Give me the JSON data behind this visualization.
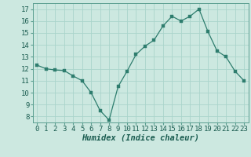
{
  "x": [
    0,
    1,
    2,
    3,
    4,
    5,
    6,
    7,
    8,
    9,
    10,
    11,
    12,
    13,
    14,
    15,
    16,
    17,
    18,
    19,
    20,
    21,
    22,
    23
  ],
  "y": [
    12.3,
    12.0,
    11.9,
    11.85,
    11.4,
    11.0,
    10.0,
    8.5,
    7.7,
    10.5,
    11.8,
    13.2,
    13.9,
    14.4,
    15.6,
    16.4,
    16.0,
    16.4,
    17.0,
    15.1,
    13.5,
    13.0,
    11.8,
    11.0
  ],
  "line_color": "#2e7d6e",
  "marker_color": "#2e7d6e",
  "bg_color": "#cce8e0",
  "grid_color": "#aad4cb",
  "xlabel": "Humidex (Indice chaleur)",
  "xlim": [
    -0.5,
    23.5
  ],
  "ylim": [
    7.5,
    17.5
  ],
  "yticks": [
    8,
    9,
    10,
    11,
    12,
    13,
    14,
    15,
    16,
    17
  ],
  "xticks": [
    0,
    1,
    2,
    3,
    4,
    5,
    6,
    7,
    8,
    9,
    10,
    11,
    12,
    13,
    14,
    15,
    16,
    17,
    18,
    19,
    20,
    21,
    22,
    23
  ],
  "xtick_labels": [
    "0",
    "1",
    "2",
    "3",
    "4",
    "5",
    "6",
    "7",
    "8",
    "9",
    "10",
    "11",
    "12",
    "13",
    "14",
    "15",
    "16",
    "17",
    "18",
    "19",
    "20",
    "21",
    "22",
    "23"
  ],
  "tick_fontsize": 6.5,
  "xlabel_fontsize": 7.5
}
